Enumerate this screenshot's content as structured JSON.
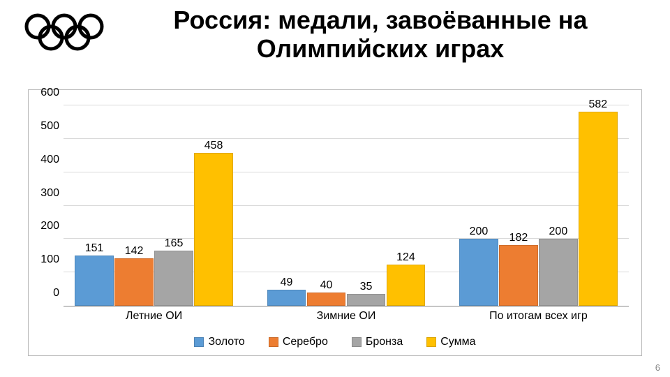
{
  "title": "Россия: медали, завоёванные на Олимпийских играх",
  "page_number": 6,
  "logo": {
    "ring_stroke": 5,
    "ring_r": 16,
    "colors": [
      "#0081c8",
      "#000000",
      "#ee334e",
      "#fcb131",
      "#00a651"
    ]
  },
  "chart": {
    "type": "bar",
    "ylim": [
      0,
      600
    ],
    "ytick_step": 100,
    "yticks": [
      0,
      100,
      200,
      300,
      400,
      500,
      600
    ],
    "title_fontsize": 36,
    "label_fontsize": 16,
    "background_color": "#ffffff",
    "grid_color": "#d9d9d9",
    "axis_color": "#888888",
    "bar_border_color": "rgba(0,0,0,0.12)",
    "categories": [
      "Летние ОИ",
      "Зимние ОИ",
      "По итогам всех игр"
    ],
    "series": [
      {
        "label": "Золото",
        "color": "#5b9bd5"
      },
      {
        "label": "Серебро",
        "color": "#ed7d31"
      },
      {
        "label": "Бронза",
        "color": "#a5a5a5"
      },
      {
        "label": "Сумма",
        "color": "#ffc000"
      }
    ],
    "data": [
      [
        151,
        142,
        165,
        458
      ],
      [
        49,
        40,
        35,
        124
      ],
      [
        200,
        182,
        200,
        582
      ]
    ],
    "group_positions_pct": [
      2,
      36,
      70
    ],
    "group_width_pct": 28,
    "bar_gap_pct": 0.5
  }
}
